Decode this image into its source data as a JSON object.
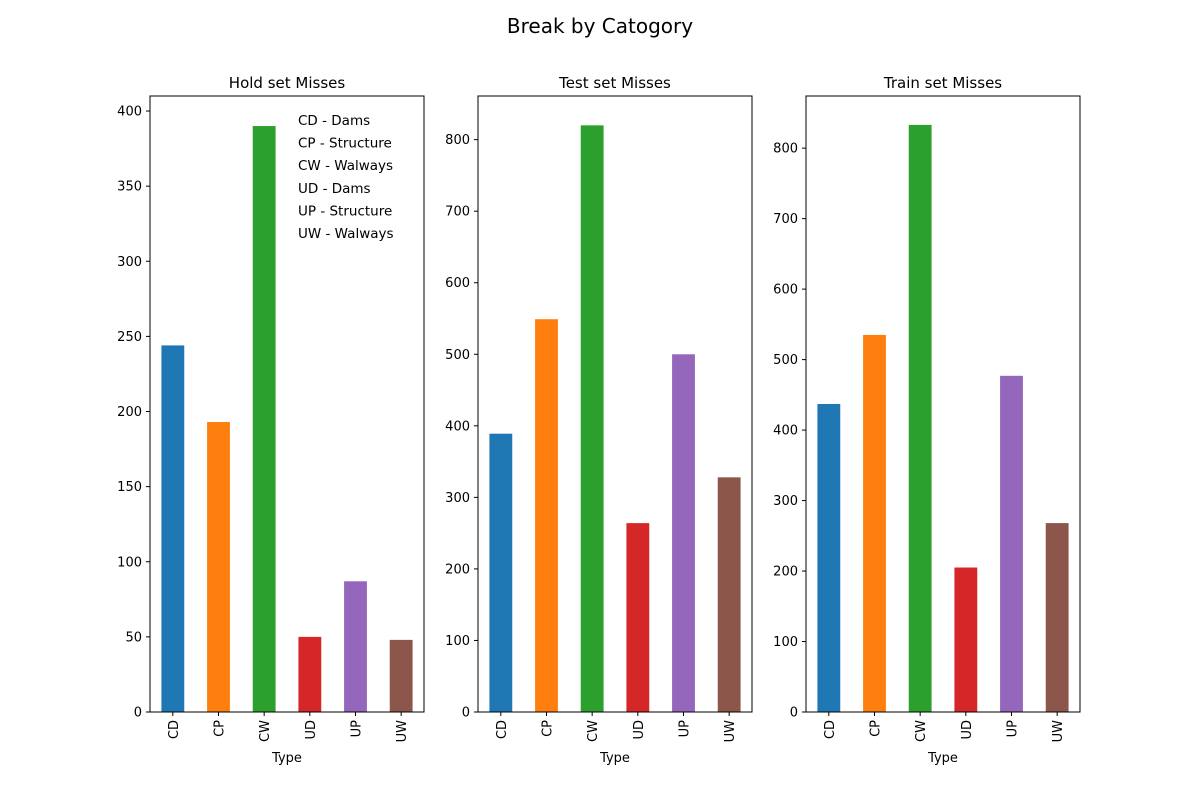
{
  "figure": {
    "suptitle": "Break by Catogory"
  },
  "colors": [
    "#1f77b4",
    "#ff7f0e",
    "#2ca02c",
    "#d62728",
    "#9467bd",
    "#8c564b"
  ],
  "chart_data": [
    {
      "type": "bar",
      "title": "Hold set Misses",
      "xlabel": "Type",
      "ylabel": "",
      "categories": [
        "CD",
        "CP",
        "CW",
        "UD",
        "UP",
        "UW"
      ],
      "values": [
        244,
        193,
        390,
        50,
        87,
        48
      ],
      "ylim": [
        0,
        410
      ],
      "yticks": [
        "0",
        "50",
        "100",
        "150",
        "200",
        "250",
        "300",
        "350",
        "400"
      ],
      "legend": {
        "position": "upper-right",
        "entries": [
          "CD - Dams",
          "CP - Structure",
          "CW - Walways",
          "UD - Dams",
          "UP - Structure",
          "UW - Walways"
        ]
      }
    },
    {
      "type": "bar",
      "title": "Test set Misses",
      "xlabel": "Type",
      "ylabel": "",
      "categories": [
        "CD",
        "CP",
        "CW",
        "UD",
        "UP",
        "UW"
      ],
      "values": [
        389,
        549,
        820,
        264,
        500,
        328
      ],
      "ylim": [
        0,
        861
      ],
      "yticks": [
        "0",
        "100",
        "200",
        "300",
        "400",
        "500",
        "600",
        "700",
        "800"
      ]
    },
    {
      "type": "bar",
      "title": "Train set Misses",
      "xlabel": "Type",
      "ylabel": "",
      "categories": [
        "CD",
        "CP",
        "CW",
        "UD",
        "UP",
        "UW"
      ],
      "values": [
        437,
        535,
        833,
        205,
        477,
        268
      ],
      "ylim": [
        0,
        874
      ],
      "yticks": [
        "0",
        "100",
        "200",
        "300",
        "400",
        "500",
        "600",
        "700",
        "800"
      ]
    }
  ]
}
